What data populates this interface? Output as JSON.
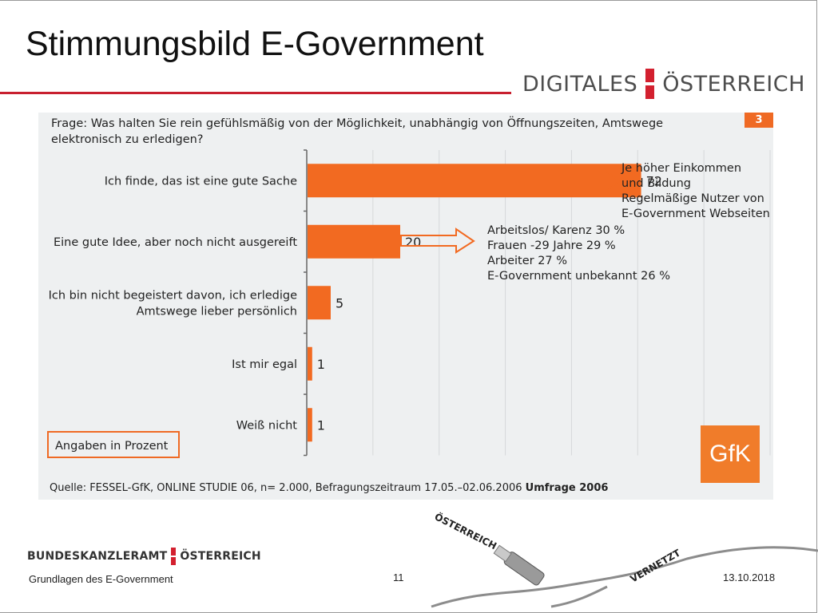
{
  "slide": {
    "title": "Stimmungsbild E-Government",
    "brand_left": "DIGITALES",
    "brand_right": "ÖSTERREICH",
    "page_badge": "3",
    "question": "Frage: Was halten Sie rein gefühlsmäßig von der Möglichkeit, unabhängig von Öffnungszeiten, Amtswege elektronisch zu erledigen?",
    "units_note": "Angaben in Prozent",
    "source_prefix": "Quelle: FESSEL-GfK, ONLINE STUDIE 06, n= 2.000, Befragungszeitraum 17.05.–02.06.2006",
    "source_bold": "Umfrage 2006",
    "gfk_logo": "GfK",
    "note_top": [
      "Je höher Einkommen",
      "und Bildung",
      "Regelmäßige Nutzer von",
      "E-Government Webseiten"
    ],
    "note_mid": [
      "Arbeitslos/ Karenz 30 %",
      "Frauen -29 Jahre 29 %",
      "Arbeiter 27 %",
      "E-Government unbekannt 26 %"
    ]
  },
  "footer": {
    "logo_left": "BUNDESKANZLERAMT",
    "logo_right": "ÖSTERREICH",
    "left_text": "Grundlagen des E-Government",
    "page_number": "11",
    "date": "13.10.2018",
    "deco_text_1": "ÖSTERREICH",
    "deco_text_2": "VERNETZT"
  },
  "colors": {
    "bar": "#f26a21",
    "accent_red": "#c8202f",
    "panel": "#eef0f1"
  },
  "chart_data": {
    "type": "bar",
    "orientation": "horizontal",
    "categories": [
      [
        "Ich finde, das ist eine gute Sache"
      ],
      [
        "Eine gute Idee, aber noch nicht ausgereift"
      ],
      [
        "Ich bin nicht begeistert davon, ich erledige",
        "Amtswege lieber persönlich"
      ],
      [
        "Ist mir egal"
      ],
      [
        "Weiß nicht"
      ]
    ],
    "values": [
      72,
      20,
      5,
      1,
      1
    ],
    "xlim": [
      0,
      100
    ],
    "grid": true,
    "unit": "Angaben in Prozent"
  }
}
